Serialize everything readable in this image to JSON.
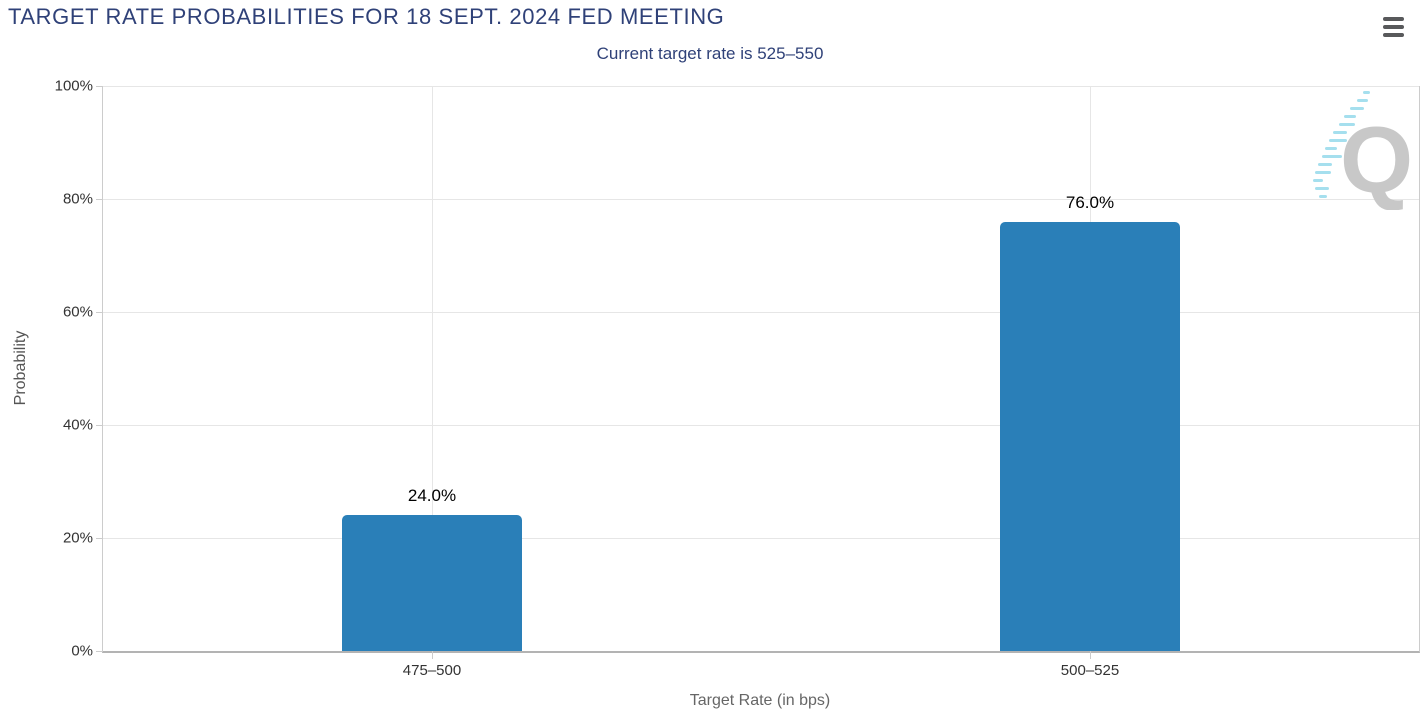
{
  "header": {
    "title": "TARGET RATE PROBABILITIES FOR 18 SEPT. 2024 FED MEETING",
    "subtitle": "Current target rate is 525–550",
    "menu_icon": "hamburger-icon"
  },
  "watermark": {
    "letter": "Q"
  },
  "colors": {
    "title_text": "#2F4178",
    "bar": "#2A7FB8",
    "gridline": "#E6E6E6",
    "axis_line": "#CCCCCC",
    "value_label": "#000000",
    "watermark_q": "#C8C8C8",
    "watermark_dashes": "#A5DFEE"
  },
  "chart_data": {
    "type": "bar",
    "title": "TARGET RATE PROBABILITIES FOR 18 SEPT. 2024 FED MEETING",
    "subtitle": "Current target rate is 525–550",
    "categories": [
      "475–500",
      "500–525"
    ],
    "values": [
      24.0,
      76.0
    ],
    "value_labels": [
      "24.0%",
      "76.0%"
    ],
    "xlabel": "Target Rate (in bps)",
    "ylabel": "Probability",
    "ylim": [
      0,
      100
    ],
    "yticks": [
      0,
      20,
      40,
      60,
      80,
      100
    ],
    "ytick_labels": [
      "0%",
      "20%",
      "40%",
      "60%",
      "80%",
      "100%"
    ],
    "grid": true,
    "legend_position": "none",
    "bar_color": "#2A7FB8"
  }
}
